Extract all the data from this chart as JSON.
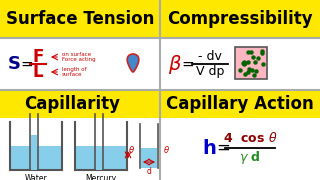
{
  "bg_yellow": "#FFE800",
  "bg_white": "#FFFFFF",
  "title1": "Surface Tension",
  "title2": "Compressibility",
  "title3": "Capillarity",
  "title4": "Capillary Action",
  "s_color": "#00008B",
  "s_frac_color": "#CC0000",
  "arrow_color": "#CC0000",
  "beta_color": "#CC0000",
  "h_color": "#0000CC",
  "h_num_color": "#8B0000",
  "h_den_color": "#228B22",
  "water_label": "Water",
  "mercury_label": "Mercury",
  "drop_color": "#4488CC",
  "drop_edge": "#CC2222",
  "box_fill": "#FFB6C1",
  "box_edge": "#555555",
  "dot_color": "#006400",
  "water_color": "#87CEEB",
  "divider_color": "#AAAAAA"
}
